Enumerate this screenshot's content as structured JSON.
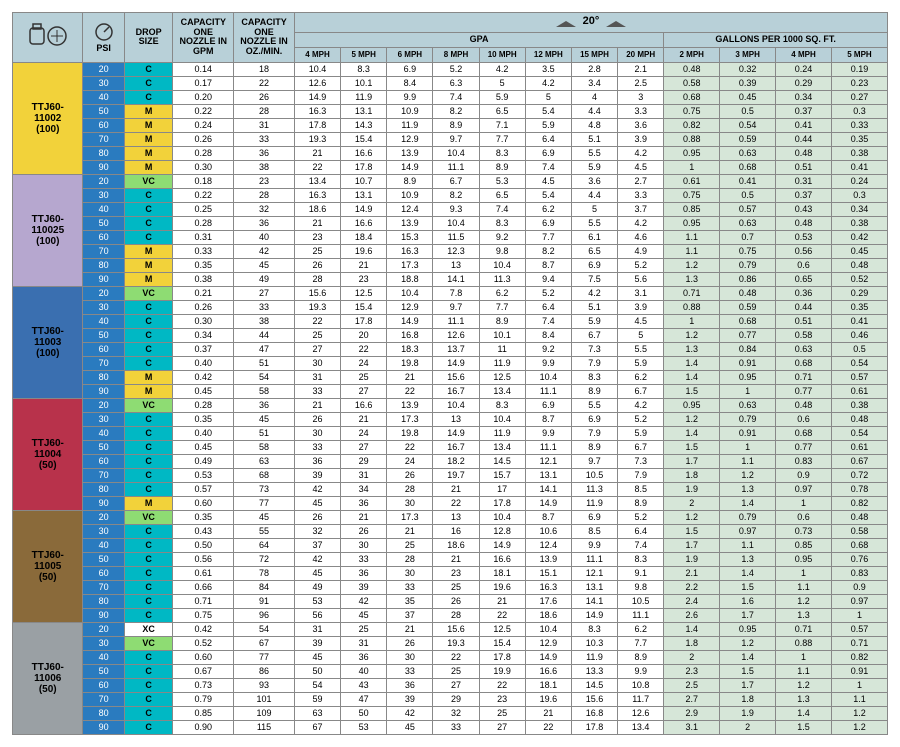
{
  "header": {
    "psi_label": "PSI",
    "drop_size_label": "DROP SIZE",
    "cap_gpm_label": "CAPACITY ONE NOZZLE IN GPM",
    "cap_oz_label": "CAPACITY ONE NOZZLE IN OZ./MIN.",
    "gpa_label": "GPA",
    "gallons_label": "GALLONS PER 1000 SQ. FT.",
    "angle_label": "20°",
    "gpa_speeds": [
      "4 MPH",
      "5 MPH",
      "6 MPH",
      "8 MPH",
      "10 MPH",
      "12 MPH",
      "15 MPH",
      "20 MPH"
    ],
    "gal_speeds": [
      "2 MPH",
      "3 MPH",
      "4 MPH",
      "5 MPH"
    ]
  },
  "colors": {
    "header_bg": "#b8d0d8",
    "psi_blue": "#2a7bbf",
    "ds_VC": "#8edc73",
    "ds_XC": "#ffffff",
    "ds_C": "#00b8c4",
    "ds_M": "#f2d23a",
    "gal_bg": "#d6e6d8",
    "row_border": "#888888"
  },
  "column_widths": {
    "nozzle": 58,
    "psi": 34,
    "ds": 40,
    "gpm": 50,
    "oz": 50,
    "gpa": 38,
    "gal": 46
  },
  "nozzle_colors": {
    "TTJ60-11002 (100)": "#f2d23a",
    "TTJ60-110025 (100)": "#b6a7cf",
    "TTJ60-11003 (100)": "#3a6fb0",
    "TTJ60-11004 (50)": "#b8324b",
    "TTJ60-11005 (50)": "#8a6a3a",
    "TTJ60-11006 (50)": "#9aa0a4"
  },
  "groups": [
    {
      "label": "TTJ60-11002 (100)",
      "rows": [
        {
          "psi": 20,
          "ds": "C",
          "gpm": "0.14",
          "oz": 18,
          "gpa": [
            10.4,
            8.3,
            6.9,
            5.2,
            4.2,
            3.5,
            2.8,
            2.1
          ],
          "gal": [
            0.48,
            0.32,
            0.24,
            0.19
          ]
        },
        {
          "psi": 30,
          "ds": "C",
          "gpm": "0.17",
          "oz": 22,
          "gpa": [
            12.6,
            10.1,
            8.4,
            6.3,
            5.0,
            4.2,
            3.4,
            2.5
          ],
          "gal": [
            0.58,
            0.39,
            0.29,
            0.23
          ]
        },
        {
          "psi": 40,
          "ds": "C",
          "gpm": "0.20",
          "oz": 26,
          "gpa": [
            14.9,
            11.9,
            9.9,
            7.4,
            5.9,
            5.0,
            4.0,
            3.0
          ],
          "gal": [
            0.68,
            0.45,
            0.34,
            0.27
          ]
        },
        {
          "psi": 50,
          "ds": "M",
          "gpm": "0.22",
          "oz": 28,
          "gpa": [
            16.3,
            13.1,
            10.9,
            8.2,
            6.5,
            5.4,
            4.4,
            3.3
          ],
          "gal": [
            0.75,
            0.5,
            0.37,
            0.3
          ]
        },
        {
          "psi": 60,
          "ds": "M",
          "gpm": "0.24",
          "oz": 31,
          "gpa": [
            17.8,
            14.3,
            11.9,
            8.9,
            7.1,
            5.9,
            4.8,
            3.6
          ],
          "gal": [
            0.82,
            0.54,
            0.41,
            0.33
          ]
        },
        {
          "psi": 70,
          "ds": "M",
          "gpm": "0.26",
          "oz": 33,
          "gpa": [
            19.3,
            15.4,
            12.9,
            9.7,
            7.7,
            6.4,
            5.1,
            3.9
          ],
          "gal": [
            0.88,
            0.59,
            0.44,
            0.35
          ]
        },
        {
          "psi": 80,
          "ds": "M",
          "gpm": "0.28",
          "oz": 36,
          "gpa": [
            21,
            16.6,
            13.9,
            10.4,
            8.3,
            6.9,
            5.5,
            4.2
          ],
          "gal": [
            0.95,
            0.63,
            0.48,
            0.38
          ]
        },
        {
          "psi": 90,
          "ds": "M",
          "gpm": "0.30",
          "oz": 38,
          "gpa": [
            22,
            17.8,
            14.9,
            11.1,
            8.9,
            7.4,
            5.9,
            4.5
          ],
          "gal": [
            1.0,
            0.68,
            0.51,
            0.41
          ]
        }
      ]
    },
    {
      "label": "TTJ60-110025 (100)",
      "rows": [
        {
          "psi": 20,
          "ds": "VC",
          "gpm": "0.18",
          "oz": 23,
          "gpa": [
            13.4,
            10.7,
            8.9,
            6.7,
            5.3,
            4.5,
            3.6,
            2.7
          ],
          "gal": [
            0.61,
            0.41,
            0.31,
            0.24
          ]
        },
        {
          "psi": 30,
          "ds": "C",
          "gpm": "0.22",
          "oz": 28,
          "gpa": [
            16.3,
            13.1,
            10.9,
            8.2,
            6.5,
            5.4,
            4.4,
            3.3
          ],
          "gal": [
            0.75,
            0.5,
            0.37,
            0.3
          ]
        },
        {
          "psi": 40,
          "ds": "C",
          "gpm": "0.25",
          "oz": 32,
          "gpa": [
            18.6,
            14.9,
            12.4,
            9.3,
            7.4,
            6.2,
            5.0,
            3.7
          ],
          "gal": [
            0.85,
            0.57,
            0.43,
            0.34
          ]
        },
        {
          "psi": 50,
          "ds": "C",
          "gpm": "0.28",
          "oz": 36,
          "gpa": [
            21,
            16.6,
            13.9,
            10.4,
            8.3,
            6.9,
            5.5,
            4.2
          ],
          "gal": [
            0.95,
            0.63,
            0.48,
            0.38
          ]
        },
        {
          "psi": 60,
          "ds": "C",
          "gpm": "0.31",
          "oz": 40,
          "gpa": [
            23,
            18.4,
            15.3,
            11.5,
            9.2,
            7.7,
            6.1,
            4.6
          ],
          "gal": [
            1.1,
            0.7,
            0.53,
            0.42
          ]
        },
        {
          "psi": 70,
          "ds": "M",
          "gpm": "0.33",
          "oz": 42,
          "gpa": [
            25,
            19.6,
            16.3,
            12.3,
            9.8,
            8.2,
            6.5,
            4.9
          ],
          "gal": [
            1.1,
            0.75,
            0.56,
            0.45
          ]
        },
        {
          "psi": 80,
          "ds": "M",
          "gpm": "0.35",
          "oz": 45,
          "gpa": [
            26,
            21,
            17.3,
            13.0,
            10.4,
            8.7,
            6.9,
            5.2
          ],
          "gal": [
            1.2,
            0.79,
            0.6,
            0.48
          ]
        },
        {
          "psi": 90,
          "ds": "M",
          "gpm": "0.38",
          "oz": 49,
          "gpa": [
            28,
            23,
            18.8,
            14.1,
            11.3,
            9.4,
            7.5,
            5.6
          ],
          "gal": [
            1.3,
            0.86,
            0.65,
            0.52
          ]
        }
      ]
    },
    {
      "label": "TTJ60-11003 (100)",
      "rows": [
        {
          "psi": 20,
          "ds": "VC",
          "gpm": "0.21",
          "oz": 27,
          "gpa": [
            15.6,
            12.5,
            10.4,
            7.8,
            6.2,
            5.2,
            4.2,
            3.1
          ],
          "gal": [
            0.71,
            0.48,
            0.36,
            0.29
          ]
        },
        {
          "psi": 30,
          "ds": "C",
          "gpm": "0.26",
          "oz": 33,
          "gpa": [
            19.3,
            15.4,
            12.9,
            9.7,
            7.7,
            6.4,
            5.1,
            3.9
          ],
          "gal": [
            0.88,
            0.59,
            0.44,
            0.35
          ]
        },
        {
          "psi": 40,
          "ds": "C",
          "gpm": "0.30",
          "oz": 38,
          "gpa": [
            22,
            17.8,
            14.9,
            11.1,
            8.9,
            7.4,
            5.9,
            4.5
          ],
          "gal": [
            1.0,
            0.68,
            0.51,
            0.41
          ]
        },
        {
          "psi": 50,
          "ds": "C",
          "gpm": "0.34",
          "oz": 44,
          "gpa": [
            25,
            20,
            16.8,
            12.6,
            10.1,
            8.4,
            6.7,
            5.0
          ],
          "gal": [
            1.2,
            0.77,
            0.58,
            0.46
          ]
        },
        {
          "psi": 60,
          "ds": "C",
          "gpm": "0.37",
          "oz": 47,
          "gpa": [
            27,
            22,
            18.3,
            13.7,
            11.0,
            9.2,
            7.3,
            5.5
          ],
          "gal": [
            1.3,
            0.84,
            0.63,
            0.5
          ]
        },
        {
          "psi": 70,
          "ds": "C",
          "gpm": "0.40",
          "oz": 51,
          "gpa": [
            30,
            24,
            19.8,
            14.9,
            11.9,
            9.9,
            7.9,
            5.9
          ],
          "gal": [
            1.4,
            0.91,
            0.68,
            0.54
          ]
        },
        {
          "psi": 80,
          "ds": "M",
          "gpm": "0.42",
          "oz": 54,
          "gpa": [
            31,
            25,
            21,
            15.6,
            12.5,
            10.4,
            8.3,
            6.2
          ],
          "gal": [
            1.4,
            0.95,
            0.71,
            0.57
          ]
        },
        {
          "psi": 90,
          "ds": "M",
          "gpm": "0.45",
          "oz": 58,
          "gpa": [
            33,
            27,
            22,
            16.7,
            13.4,
            11.1,
            8.9,
            6.7
          ],
          "gal": [
            1.5,
            1.0,
            0.77,
            0.61
          ]
        }
      ]
    },
    {
      "label": "TTJ60-11004 (50)",
      "rows": [
        {
          "psi": 20,
          "ds": "VC",
          "gpm": "0.28",
          "oz": 36,
          "gpa": [
            21,
            16.6,
            13.9,
            10.4,
            8.3,
            6.9,
            5.5,
            4.2
          ],
          "gal": [
            0.95,
            0.63,
            0.48,
            0.38
          ]
        },
        {
          "psi": 30,
          "ds": "C",
          "gpm": "0.35",
          "oz": 45,
          "gpa": [
            26,
            21,
            17.3,
            13.0,
            10.4,
            8.7,
            6.9,
            5.2
          ],
          "gal": [
            1.2,
            0.79,
            0.6,
            0.48
          ]
        },
        {
          "psi": 40,
          "ds": "C",
          "gpm": "0.40",
          "oz": 51,
          "gpa": [
            30,
            24,
            19.8,
            14.9,
            11.9,
            9.9,
            7.9,
            5.9
          ],
          "gal": [
            1.4,
            0.91,
            0.68,
            0.54
          ]
        },
        {
          "psi": 50,
          "ds": "C",
          "gpm": "0.45",
          "oz": 58,
          "gpa": [
            33,
            27,
            22,
            16.7,
            13.4,
            11.1,
            8.9,
            6.7
          ],
          "gal": [
            1.5,
            1.0,
            0.77,
            0.61
          ]
        },
        {
          "psi": 60,
          "ds": "C",
          "gpm": "0.49",
          "oz": 63,
          "gpa": [
            36,
            29,
            24,
            18.2,
            14.5,
            12.1,
            9.7,
            7.3
          ],
          "gal": [
            1.7,
            1.1,
            0.83,
            0.67
          ]
        },
        {
          "psi": 70,
          "ds": "C",
          "gpm": "0.53",
          "oz": 68,
          "gpa": [
            39,
            31,
            26,
            19.7,
            15.7,
            13.1,
            10.5,
            7.9
          ],
          "gal": [
            1.8,
            1.2,
            0.9,
            0.72
          ]
        },
        {
          "psi": 80,
          "ds": "C",
          "gpm": "0.57",
          "oz": 73,
          "gpa": [
            42,
            34,
            28,
            21,
            17.0,
            14.1,
            11.3,
            8.5
          ],
          "gal": [
            1.9,
            1.3,
            0.97,
            0.78
          ]
        },
        {
          "psi": 90,
          "ds": "M",
          "gpm": "0.60",
          "oz": 77,
          "gpa": [
            45,
            36,
            30,
            22,
            17.8,
            14.9,
            11.9,
            8.9
          ],
          "gal": [
            2.0,
            1.4,
            1.0,
            0.82
          ]
        }
      ]
    },
    {
      "label": "TTJ60-11005 (50)",
      "rows": [
        {
          "psi": 20,
          "ds": "VC",
          "gpm": "0.35",
          "oz": 45,
          "gpa": [
            26,
            21,
            17.3,
            13.0,
            10.4,
            8.7,
            6.9,
            5.2
          ],
          "gal": [
            1.2,
            0.79,
            0.6,
            0.48
          ]
        },
        {
          "psi": 30,
          "ds": "C",
          "gpm": "0.43",
          "oz": 55,
          "gpa": [
            32,
            26,
            21,
            16.0,
            12.8,
            10.6,
            8.5,
            6.4
          ],
          "gal": [
            1.5,
            0.97,
            0.73,
            0.58
          ]
        },
        {
          "psi": 40,
          "ds": "C",
          "gpm": "0.50",
          "oz": 64,
          "gpa": [
            37,
            30,
            25,
            18.6,
            14.9,
            12.4,
            9.9,
            7.4
          ],
          "gal": [
            1.7,
            1.1,
            0.85,
            0.68
          ]
        },
        {
          "psi": 50,
          "ds": "C",
          "gpm": "0.56",
          "oz": 72,
          "gpa": [
            42,
            33,
            28,
            21,
            16.6,
            13.9,
            11.1,
            8.3
          ],
          "gal": [
            1.9,
            1.3,
            0.95,
            0.76
          ]
        },
        {
          "psi": 60,
          "ds": "C",
          "gpm": "0.61",
          "oz": 78,
          "gpa": [
            45,
            36,
            30,
            23,
            18.1,
            15.1,
            12.1,
            9.1
          ],
          "gal": [
            2.1,
            1.4,
            1.0,
            0.83
          ]
        },
        {
          "psi": 70,
          "ds": "C",
          "gpm": "0.66",
          "oz": 84,
          "gpa": [
            49,
            39,
            33,
            25,
            19.6,
            16.3,
            13.1,
            9.8
          ],
          "gal": [
            2.2,
            1.5,
            1.1,
            0.9
          ]
        },
        {
          "psi": 80,
          "ds": "C",
          "gpm": "0.71",
          "oz": 91,
          "gpa": [
            53,
            42,
            35,
            26,
            21,
            17.6,
            14.1,
            10.5
          ],
          "gal": [
            2.4,
            1.6,
            1.2,
            0.97
          ]
        },
        {
          "psi": 90,
          "ds": "C",
          "gpm": "0.75",
          "oz": 96,
          "gpa": [
            56,
            45,
            37,
            28,
            22,
            18.6,
            14.9,
            11.1
          ],
          "gal": [
            2.6,
            1.7,
            1.3,
            1.0
          ]
        }
      ]
    },
    {
      "label": "TTJ60-11006 (50)",
      "rows": [
        {
          "psi": 20,
          "ds": "XC",
          "gpm": "0.42",
          "oz": 54,
          "gpa": [
            31,
            25,
            21,
            15.6,
            12.5,
            10.4,
            8.3,
            6.2
          ],
          "gal": [
            1.4,
            0.95,
            0.71,
            0.57
          ]
        },
        {
          "psi": 30,
          "ds": "VC",
          "gpm": "0.52",
          "oz": 67,
          "gpa": [
            39,
            31,
            26,
            19.3,
            15.4,
            12.9,
            10.3,
            7.7
          ],
          "gal": [
            1.8,
            1.2,
            0.88,
            0.71
          ]
        },
        {
          "psi": 40,
          "ds": "C",
          "gpm": "0.60",
          "oz": 77,
          "gpa": [
            45,
            36,
            30,
            22,
            17.8,
            14.9,
            11.9,
            8.9
          ],
          "gal": [
            2.0,
            1.4,
            1.0,
            0.82
          ]
        },
        {
          "psi": 50,
          "ds": "C",
          "gpm": "0.67",
          "oz": 86,
          "gpa": [
            50,
            40,
            33,
            25,
            19.9,
            16.6,
            13.3,
            9.9
          ],
          "gal": [
            2.3,
            1.5,
            1.1,
            0.91
          ]
        },
        {
          "psi": 60,
          "ds": "C",
          "gpm": "0.73",
          "oz": 93,
          "gpa": [
            54,
            43,
            36,
            27,
            22,
            18.1,
            14.5,
            10.8
          ],
          "gal": [
            2.5,
            1.7,
            1.2,
            1.0
          ]
        },
        {
          "psi": 70,
          "ds": "C",
          "gpm": "0.79",
          "oz": 101,
          "gpa": [
            59,
            47,
            39,
            29,
            23,
            19.6,
            15.6,
            11.7
          ],
          "gal": [
            2.7,
            1.8,
            1.3,
            1.1
          ]
        },
        {
          "psi": 80,
          "ds": "C",
          "gpm": "0.85",
          "oz": 109,
          "gpa": [
            63,
            50,
            42,
            32,
            25,
            21,
            16.8,
            12.6
          ],
          "gal": [
            2.9,
            1.9,
            1.4,
            1.2
          ]
        },
        {
          "psi": 90,
          "ds": "C",
          "gpm": "0.90",
          "oz": 115,
          "gpa": [
            67,
            53,
            45,
            33,
            27,
            22,
            17.8,
            13.4
          ],
          "gal": [
            3.1,
            2.0,
            1.5,
            1.2
          ]
        }
      ]
    }
  ]
}
